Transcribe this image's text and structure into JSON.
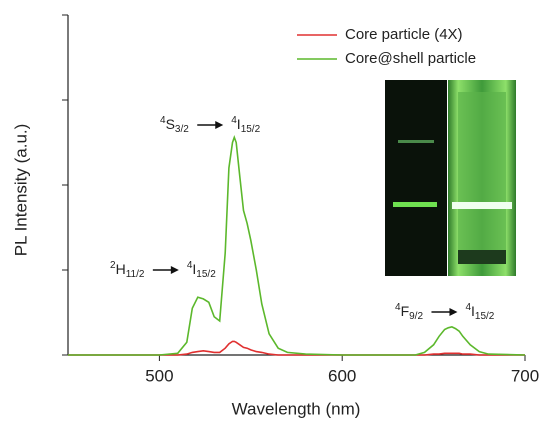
{
  "chart_data": {
    "type": "line",
    "xlabel": "Wavelength (nm)",
    "ylabel": "PL Intensity (a.u.)",
    "xlim": [
      450,
      700
    ],
    "xticks": [
      500,
      600,
      700
    ],
    "ylim": [
      0,
      4
    ],
    "yticks": [
      0,
      1,
      2,
      3,
      4
    ],
    "legend": "upper right",
    "x": [
      450,
      480,
      500,
      510,
      515,
      518,
      521,
      524,
      527,
      530,
      533,
      536,
      538,
      540,
      541,
      542,
      544,
      546,
      548,
      550,
      553,
      556,
      560,
      565,
      570,
      580,
      600,
      620,
      640,
      645,
      650,
      653,
      656,
      658,
      660,
      662,
      664,
      666,
      670,
      675,
      680,
      700
    ],
    "series": [
      {
        "name": "Core particle (4X)",
        "color": "#e03030",
        "values": [
          0,
          0,
          0,
          0,
          0.01,
          0.03,
          0.04,
          0.05,
          0.04,
          0.03,
          0.03,
          0.08,
          0.13,
          0.16,
          0.16,
          0.15,
          0.12,
          0.09,
          0.08,
          0.06,
          0.04,
          0.03,
          0.01,
          0,
          0,
          0,
          0,
          0,
          0,
          0,
          0.01,
          0.01,
          0.02,
          0.02,
          0.02,
          0.02,
          0.02,
          0.01,
          0.01,
          0,
          0,
          0
        ]
      },
      {
        "name": "Core@shell particle",
        "color": "#5cb82c",
        "values": [
          0,
          0,
          0,
          0.02,
          0.15,
          0.55,
          0.68,
          0.66,
          0.62,
          0.45,
          0.4,
          1.2,
          2.2,
          2.5,
          2.56,
          2.5,
          2.1,
          1.7,
          1.55,
          1.35,
          1.0,
          0.6,
          0.25,
          0.08,
          0.03,
          0.01,
          0,
          0,
          0,
          0.03,
          0.12,
          0.22,
          0.3,
          0.32,
          0.33,
          0.31,
          0.28,
          0.22,
          0.12,
          0.04,
          0.01,
          0
        ]
      }
    ],
    "annotations": [
      {
        "from": {
          "sup": "2",
          "sym": "H",
          "sub": "11/2"
        },
        "to": {
          "sup": "4",
          "sym": "I",
          "sub": "15/2"
        }
      },
      {
        "from": {
          "sup": "4",
          "sym": "S",
          "sub": "3/2"
        },
        "to": {
          "sup": "4",
          "sym": "I",
          "sub": "15/2"
        }
      },
      {
        "from": {
          "sup": "4",
          "sym": "F",
          "sub": "9/2"
        },
        "to": {
          "sup": "4",
          "sym": "I",
          "sub": "15/2"
        }
      }
    ]
  }
}
